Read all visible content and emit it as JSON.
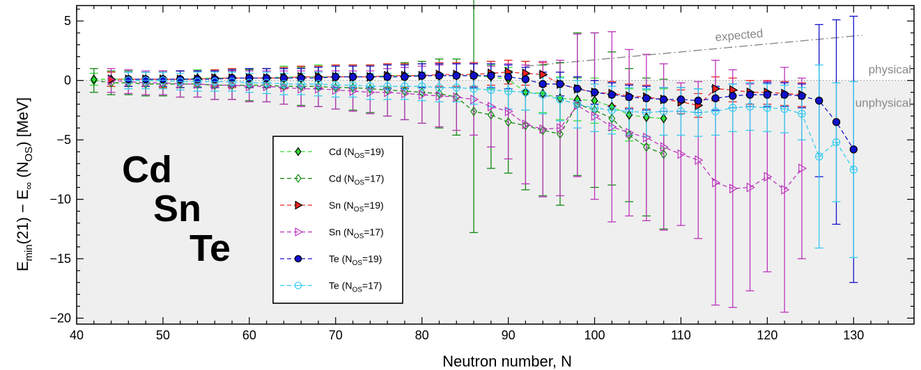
{
  "chart_data": {
    "type": "scatter",
    "xlabel": "Neutron number, N",
    "ylabel": "E_min(21) − E_∞(N_OS) [MeV]",
    "xlim": [
      40,
      137
    ],
    "ylim": [
      -20.5,
      6.3
    ],
    "x_ticks": [
      40,
      50,
      60,
      70,
      80,
      90,
      100,
      110,
      120,
      130
    ],
    "y_ticks": [
      5,
      0,
      -5,
      -10,
      -15,
      -20
    ],
    "y_tick_labels": [
      "5",
      "0",
      "−5",
      "−10",
      "−15",
      "−20"
    ],
    "shaded_region": "below 0 (unphysical)",
    "element_labels": [
      "Cd",
      "Sn",
      "Te"
    ],
    "annotations": {
      "expected": "expected",
      "physical": "physical",
      "unphysical": "unphysical"
    },
    "expected_line": {
      "x": [
        92,
        131
      ],
      "y": [
        1.2,
        3.8
      ]
    },
    "legend_position": "center-left",
    "series": [
      {
        "name": "Cd (N_OS=19)",
        "sub": "OS",
        "label_pre": "Cd (N",
        "label_post": "=19)",
        "color": "#33dd33",
        "marker": "diamond",
        "filled": true,
        "x": [
          42,
          44,
          46,
          48,
          50,
          52,
          54,
          56,
          58,
          60,
          62,
          64,
          66,
          68,
          70,
          72,
          74,
          76,
          78,
          80,
          82,
          84,
          86,
          88,
          90,
          92,
          94,
          96,
          98,
          100,
          102,
          104,
          106,
          108
        ],
        "y": [
          0.1,
          0.1,
          0.1,
          0.1,
          0.1,
          0.1,
          0.2,
          0.2,
          0.2,
          0.2,
          0.2,
          0.3,
          0.3,
          0.3,
          0.3,
          0.3,
          0.3,
          0.4,
          0.4,
          0.4,
          0.4,
          0.4,
          0.4,
          0.3,
          0.1,
          -1.0,
          -1.1,
          -1.5,
          -1.6,
          -1.7,
          -2.2,
          -2.9,
          -3.1,
          -3.2
        ],
        "err": [
          0.5,
          0.6,
          0.6,
          0.6,
          0.7,
          0.7,
          0.7,
          0.7,
          0.8,
          0.8,
          0.8,
          0.9,
          0.9,
          1.0,
          1.0,
          1.0,
          1.0,
          1.0,
          1.0,
          1.0,
          1.0,
          1.0,
          1.0,
          1.0,
          1.0,
          1.5,
          1.6,
          1.8,
          1.8,
          1.9,
          2.0,
          2.2,
          2.3,
          2.5
        ]
      },
      {
        "name": "Cd (N_OS=17)",
        "sub": "OS",
        "label_pre": "Cd (N",
        "label_post": "=17)",
        "color": "#118811",
        "marker": "diamond",
        "filled": false,
        "x": [
          42,
          44,
          46,
          48,
          50,
          52,
          54,
          56,
          58,
          60,
          62,
          64,
          66,
          68,
          70,
          72,
          74,
          76,
          78,
          80,
          82,
          84,
          86,
          88,
          90,
          92,
          94,
          96,
          98,
          100,
          102,
          104,
          106,
          108
        ],
        "y": [
          0.0,
          -0.2,
          -0.2,
          -0.3,
          -0.3,
          -0.3,
          -0.3,
          -0.4,
          -0.4,
          -0.4,
          -0.4,
          -0.5,
          -0.5,
          -0.5,
          -0.6,
          -0.6,
          -0.7,
          -0.8,
          -0.9,
          -1.0,
          -1.1,
          -1.4,
          -2.6,
          -2.9,
          -3.5,
          -3.8,
          -4.2,
          -4.5,
          -2.0,
          -2.5,
          -3.2,
          -4.6,
          -5.6,
          -6.2
        ],
        "err": [
          1.0,
          1.0,
          1.0,
          1.0,
          1.0,
          1.1,
          1.1,
          1.2,
          1.2,
          1.3,
          1.4,
          1.5,
          1.6,
          1.7,
          1.8,
          1.9,
          2.0,
          2.2,
          2.4,
          2.6,
          2.9,
          3.2,
          10.2,
          4.5,
          4.3,
          5.4,
          5.5,
          6.0,
          6.0,
          6.5,
          5.6,
          5.6,
          5.8,
          6.3
        ]
      },
      {
        "name": "Sn (N_OS=19)",
        "sub": "OS",
        "label_pre": "Sn (N",
        "label_post": "=19)",
        "color": "#ee2222",
        "marker": "triangle-right",
        "filled": true,
        "x": [
          44,
          46,
          48,
          50,
          52,
          54,
          56,
          58,
          60,
          62,
          64,
          66,
          68,
          70,
          72,
          74,
          76,
          78,
          80,
          82,
          84,
          86,
          88,
          90,
          92,
          94,
          96,
          98,
          100,
          102,
          104,
          106,
          108,
          110,
          112,
          114,
          116,
          118,
          120,
          122,
          124
        ],
        "y": [
          0.1,
          0.1,
          0.1,
          0.1,
          0.1,
          0.1,
          0.2,
          0.2,
          0.2,
          0.2,
          0.2,
          0.3,
          0.3,
          0.3,
          0.3,
          0.3,
          0.4,
          0.4,
          0.4,
          0.5,
          0.5,
          0.5,
          0.6,
          0.7,
          0.6,
          0.5,
          -0.3,
          -0.7,
          -1.0,
          -1.1,
          -1.3,
          -1.4,
          -1.6,
          -1.8,
          -2.1,
          -0.7,
          -0.8,
          -1.0,
          -1.0,
          -1.1,
          -1.2
        ],
        "err": [
          0.6,
          0.6,
          0.6,
          0.7,
          0.7,
          0.7,
          0.7,
          0.8,
          0.8,
          0.8,
          0.9,
          0.9,
          0.9,
          1.0,
          1.0,
          1.0,
          1.0,
          1.0,
          1.0,
          1.0,
          1.0,
          1.0,
          1.0,
          1.0,
          1.0,
          1.0,
          1.0,
          1.0,
          1.0,
          1.0,
          1.0,
          1.0,
          1.0,
          1.0,
          1.0,
          1.0,
          1.0,
          1.0,
          1.0,
          1.0,
          1.0
        ]
      },
      {
        "name": "Sn (N_OS=17)",
        "sub": "OS",
        "label_pre": "Sn (N",
        "label_post": "=17)",
        "color": "#bb33bb",
        "marker": "triangle-right",
        "filled": false,
        "x": [
          44,
          46,
          48,
          50,
          52,
          54,
          56,
          58,
          60,
          62,
          64,
          66,
          68,
          70,
          72,
          74,
          76,
          78,
          80,
          82,
          84,
          86,
          88,
          90,
          92,
          94,
          96,
          98,
          100,
          102,
          104,
          106,
          108,
          110,
          112,
          114,
          116,
          118,
          120,
          122,
          124
        ],
        "y": [
          0.0,
          -0.1,
          -0.2,
          -0.2,
          -0.3,
          -0.3,
          -0.4,
          -0.4,
          -0.5,
          -0.5,
          -0.6,
          -0.7,
          -0.7,
          -0.8,
          -0.9,
          -1.0,
          -1.0,
          -1.1,
          -1.2,
          -1.3,
          -1.4,
          -1.6,
          -2.2,
          -2.6,
          -3.7,
          -4.1,
          -4.0,
          -2.1,
          -3.0,
          -3.9,
          -4.4,
          -4.8,
          -5.6,
          -6.2,
          -6.7,
          -8.6,
          -9.1,
          -9.0,
          -8.1,
          -9.2,
          -7.4
        ],
        "err": [
          1.0,
          1.0,
          1.0,
          1.0,
          1.1,
          1.1,
          1.2,
          1.2,
          1.3,
          1.3,
          1.4,
          1.5,
          1.5,
          1.6,
          1.7,
          1.8,
          2.0,
          2.2,
          2.4,
          2.6,
          2.8,
          3.0,
          3.4,
          4.0,
          5.0,
          5.7,
          5.7,
          6.0,
          7.0,
          8.0,
          7.0,
          7.0,
          7.0,
          6.0,
          6.6,
          10.3,
          10.0,
          8.7,
          8.0,
          10.3,
          7.6
        ]
      },
      {
        "name": "Te (N_OS=19)",
        "sub": "OS",
        "label_pre": "Te (N",
        "label_post": "=19)",
        "color": "#1111cc",
        "marker": "circle",
        "filled": true,
        "x": [
          46,
          48,
          50,
          52,
          54,
          56,
          58,
          60,
          62,
          64,
          66,
          68,
          70,
          72,
          74,
          76,
          78,
          80,
          82,
          84,
          86,
          88,
          90,
          92,
          94,
          96,
          98,
          100,
          102,
          104,
          106,
          108,
          110,
          112,
          114,
          116,
          118,
          120,
          122,
          124,
          126,
          128,
          130
        ],
        "y": [
          0.1,
          0.1,
          0.1,
          0.1,
          0.1,
          0.1,
          0.2,
          0.2,
          0.2,
          0.2,
          0.2,
          0.2,
          0.3,
          0.3,
          0.3,
          0.3,
          0.3,
          0.4,
          0.4,
          0.4,
          0.4,
          0.4,
          0.3,
          0.1,
          -0.3,
          -0.3,
          -0.7,
          -1.0,
          -1.2,
          -1.4,
          -1.5,
          -1.6,
          -1.6,
          -1.7,
          -1.5,
          -1.3,
          -1.2,
          -1.2,
          -1.2,
          -1.3,
          -1.7,
          -3.5,
          -5.8
        ],
        "err": [
          0.6,
          0.6,
          0.6,
          0.7,
          0.7,
          0.7,
          0.7,
          0.8,
          0.8,
          0.8,
          0.8,
          0.9,
          0.9,
          0.9,
          0.9,
          1.0,
          1.0,
          1.0,
          1.0,
          1.0,
          1.0,
          1.0,
          1.0,
          1.0,
          1.0,
          1.0,
          1.0,
          1.0,
          1.0,
          1.0,
          1.0,
          1.0,
          1.0,
          1.0,
          1.0,
          1.0,
          1.0,
          1.0,
          1.0,
          1.0,
          6.4,
          8.6,
          11.2
        ]
      },
      {
        "name": "Te (N_OS=17)",
        "sub": "OS",
        "label_pre": "Te (N",
        "label_post": "=17)",
        "color": "#33ccee",
        "marker": "circle",
        "filled": false,
        "x": [
          46,
          48,
          50,
          52,
          54,
          56,
          58,
          60,
          62,
          64,
          66,
          68,
          70,
          72,
          74,
          76,
          78,
          80,
          82,
          84,
          86,
          88,
          90,
          92,
          94,
          96,
          98,
          100,
          102,
          104,
          106,
          108,
          110,
          112,
          114,
          116,
          118,
          120,
          122,
          124,
          126,
          128,
          130
        ],
        "y": [
          0.0,
          0.0,
          0.0,
          -0.1,
          -0.1,
          -0.1,
          -0.1,
          -0.2,
          -0.2,
          -0.3,
          -0.3,
          -0.3,
          -0.4,
          -0.4,
          -0.5,
          -0.5,
          -0.5,
          -0.5,
          -0.6,
          -0.6,
          -0.7,
          -0.8,
          -0.9,
          -1.0,
          -1.2,
          -1.6,
          -2.0,
          -2.3,
          -2.5,
          -2.6,
          -2.7,
          -2.6,
          -2.6,
          -2.7,
          -2.6,
          -2.3,
          -2.2,
          -2.3,
          -2.4,
          -2.8,
          -6.4,
          -5.2,
          -7.5
        ],
        "err": [
          0.7,
          0.7,
          0.7,
          0.7,
          0.8,
          0.8,
          0.8,
          0.8,
          0.9,
          0.9,
          0.9,
          1.0,
          1.0,
          1.0,
          1.1,
          1.1,
          1.1,
          1.2,
          1.2,
          1.2,
          1.3,
          1.4,
          1.5,
          1.5,
          1.6,
          1.8,
          2.0,
          2.0,
          2.0,
          2.0,
          2.0,
          2.0,
          2.0,
          2.0,
          2.0,
          2.0,
          2.0,
          2.0,
          2.0,
          2.2,
          7.7,
          5.0,
          7.4
        ]
      }
    ]
  }
}
